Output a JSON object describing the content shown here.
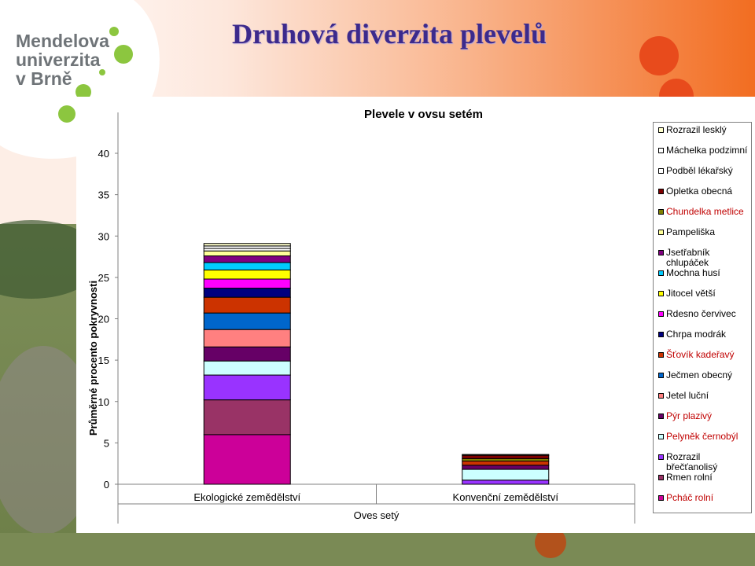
{
  "slide": {
    "title": "Druhová diverzita plevelů",
    "logo_text": [
      "Mendelova",
      "univerzita",
      "v Brně"
    ]
  },
  "colors": {
    "title": "#3c2a8c",
    "logo_text": "#6f7478",
    "logo_green": "#8cc63f",
    "accent_orange": "#f26d21",
    "accent_circle": "#e84b1c"
  },
  "chart_data": {
    "type": "bar",
    "stacked": true,
    "title": "Plevele v ovsu setém",
    "ylabel": "Průměrné procento pokryvnosti",
    "xlabel": "Oves setý",
    "categories": [
      "Ekologické zemědělství",
      "Konvenční zemědělství"
    ],
    "ylim": [
      0,
      40
    ],
    "yticks": [
      "0",
      "5",
      "10",
      "15",
      "20",
      "25",
      "30",
      "35",
      "40"
    ],
    "grid": false,
    "legend_position": "right",
    "series": [
      {
        "name": "Pcháč rolní",
        "color": "#cc0099",
        "label_color": "#c00000",
        "values": [
          6.0,
          0.0
        ]
      },
      {
        "name": "Rmen rolní",
        "color": "#993366",
        "label_color": "#000000",
        "values": [
          4.2,
          0.0
        ]
      },
      {
        "name": "Rozrazil břečťanolisý",
        "color": "#9933ff",
        "label_color": "#000000",
        "values": [
          3.0,
          0.5
        ]
      },
      {
        "name": "Pelyněk černobýl",
        "color": "#ccffff",
        "label_color": "#c00000",
        "values": [
          1.7,
          1.3
        ]
      },
      {
        "name": "Pýr plazivý",
        "color": "#660066",
        "label_color": "#c00000",
        "values": [
          1.7,
          0.5
        ]
      },
      {
        "name": "Jetel luční",
        "color": "#ff8080",
        "label_color": "#000000",
        "values": [
          2.1,
          0.0
        ]
      },
      {
        "name": "Ječmen obecný",
        "color": "#0066cc",
        "label_color": "#000000",
        "values": [
          2.0,
          0.0
        ]
      },
      {
        "name": "Šťovík kadeřavý",
        "color": "#cc3300",
        "label_color": "#c00000",
        "values": [
          1.9,
          0.5
        ]
      },
      {
        "name": "Chrpa modrák",
        "color": "#000080",
        "label_color": "#000000",
        "values": [
          1.1,
          0.0
        ]
      },
      {
        "name": "Rdesno červivec",
        "color": "#ff00ff",
        "label_color": "#000000",
        "values": [
          1.1,
          0.0
        ]
      },
      {
        "name": "Jitocel větší",
        "color": "#ffff00",
        "label_color": "#000000",
        "values": [
          1.1,
          0.0
        ]
      },
      {
        "name": "Mochna husí",
        "color": "#00ccff",
        "label_color": "#000000",
        "values": [
          0.9,
          0.0
        ]
      },
      {
        "name": "Jsetřabník chlupáček",
        "color": "#800080",
        "label_color": "#000000",
        "values": [
          0.8,
          0.0
        ]
      },
      {
        "name": "Pampeliška",
        "color": "#ffff99",
        "label_color": "#000000",
        "values": [
          0.6,
          0.0
        ]
      },
      {
        "name": "Chundelka metlice",
        "color": "#808000",
        "label_color": "#c00000",
        "values": [
          0.0,
          0.3
        ]
      },
      {
        "name": "Opletka obecná",
        "color": "#800000",
        "label_color": "#000000",
        "values": [
          0.0,
          0.4
        ]
      },
      {
        "name": "Podběl lékařský",
        "color": "#ffffff",
        "label_color": "#000000",
        "values": [
          0.3,
          0.0
        ]
      },
      {
        "name": "Máchelka podzimní",
        "color": "#ffffff",
        "label_color": "#000000",
        "values": [
          0.3,
          0.0
        ]
      },
      {
        "name": "Rozrazil lesklý",
        "color": "#ffffcc",
        "label_color": "#000000",
        "values": [
          0.3,
          0.1
        ]
      }
    ]
  }
}
